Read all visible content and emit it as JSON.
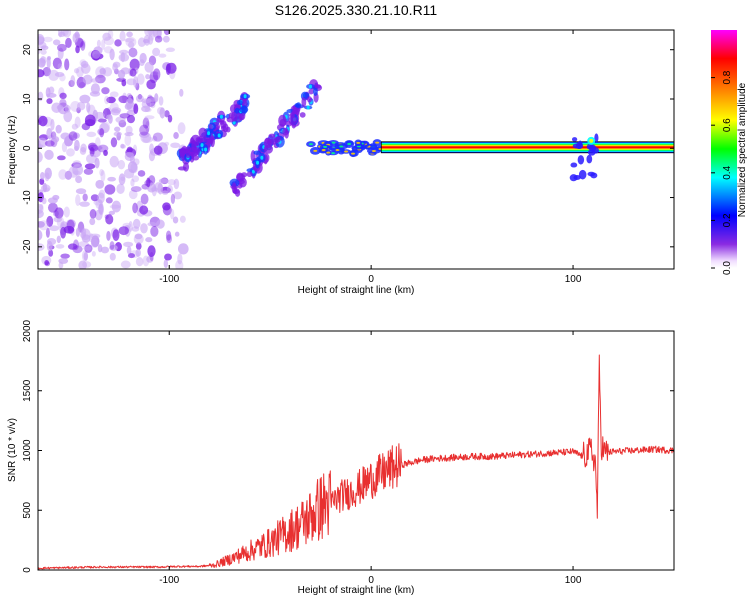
{
  "title": "S126.2025.330.21.10.R11",
  "chart_data": [
    {
      "type": "heatmap",
      "name": "spectrogram",
      "xlabel": "Height of straight line (km)",
      "ylabel": "Frequency (Hz)",
      "xlim": [
        -165,
        150
      ],
      "ylim": [
        -24.5,
        24
      ],
      "xticks": [
        -100,
        0,
        100
      ],
      "yticks": [
        -20,
        -10,
        0,
        10,
        20
      ],
      "colorbar": {
        "label": "Normalized spectral amplitude",
        "range": [
          0,
          1
        ],
        "ticks": [
          0.0,
          0.2,
          0.4,
          0.6,
          0.8
        ],
        "colors": [
          "#f2e6ff",
          "#8000ff",
          "#0000ff",
          "#00ffff",
          "#00ff00",
          "#ffff00",
          "#ff8000",
          "#ff0000",
          "#ff00ff"
        ]
      },
      "features": [
        {
          "name": "steady-carrier",
          "x_range": [
            5,
            150
          ],
          "frequency": 0.2,
          "amplitude": 1.0
        },
        {
          "name": "disturbance-near-100km",
          "x_range": [
            100,
            112
          ],
          "frequency_range": [
            -6,
            3
          ],
          "amplitude": 0.5
        },
        {
          "name": "onset-blobs",
          "x_range": [
            -30,
            5
          ],
          "frequency_range": [
            -2,
            2
          ],
          "amplitude": 0.6
        },
        {
          "name": "rising-streak-1",
          "x_range": [
            -95,
            -62
          ],
          "frequency_range": [
            -3,
            9
          ],
          "amplitude": 0.4
        },
        {
          "name": "rising-streak-2",
          "x_range": [
            -68,
            -25
          ],
          "frequency_range": [
            -8,
            13
          ],
          "amplitude": 0.35
        },
        {
          "name": "noise-field",
          "x_range": [
            -165,
            -93
          ],
          "frequency_range": [
            -24,
            24
          ],
          "amplitude": 0.1
        }
      ]
    },
    {
      "type": "line",
      "name": "snr",
      "xlabel": "Height of straight line (km)",
      "ylabel": "SNR (10 * v/v)",
      "xlim": [
        -165,
        150
      ],
      "ylim": [
        0,
        2000
      ],
      "xticks": [
        -100,
        0,
        100
      ],
      "yticks": [
        0,
        500,
        1000,
        1500,
        2000
      ],
      "color": "#e83030",
      "series": [
        {
          "name": "SNR",
          "x": [
            -165,
            -150,
            -135,
            -120,
            -105,
            -95,
            -85,
            -78,
            -70,
            -60,
            -50,
            -40,
            -33,
            -28,
            -24,
            -20,
            -15,
            -10,
            -5,
            0,
            5,
            10,
            15,
            20,
            25,
            30,
            40,
            50,
            60,
            70,
            80,
            90,
            100,
            105,
            109,
            111,
            112,
            113,
            114,
            116,
            120,
            130,
            140,
            150
          ],
          "y": [
            15,
            20,
            25,
            25,
            25,
            30,
            30,
            40,
            90,
            160,
            230,
            330,
            400,
            480,
            540,
            560,
            620,
            650,
            700,
            760,
            800,
            850,
            880,
            900,
            920,
            930,
            940,
            950,
            950,
            960,
            970,
            980,
            990,
            950,
            1000,
            900,
            500,
            1700,
            1050,
            980,
            990,
            1000,
            1010,
            1000
          ]
        }
      ]
    }
  ]
}
